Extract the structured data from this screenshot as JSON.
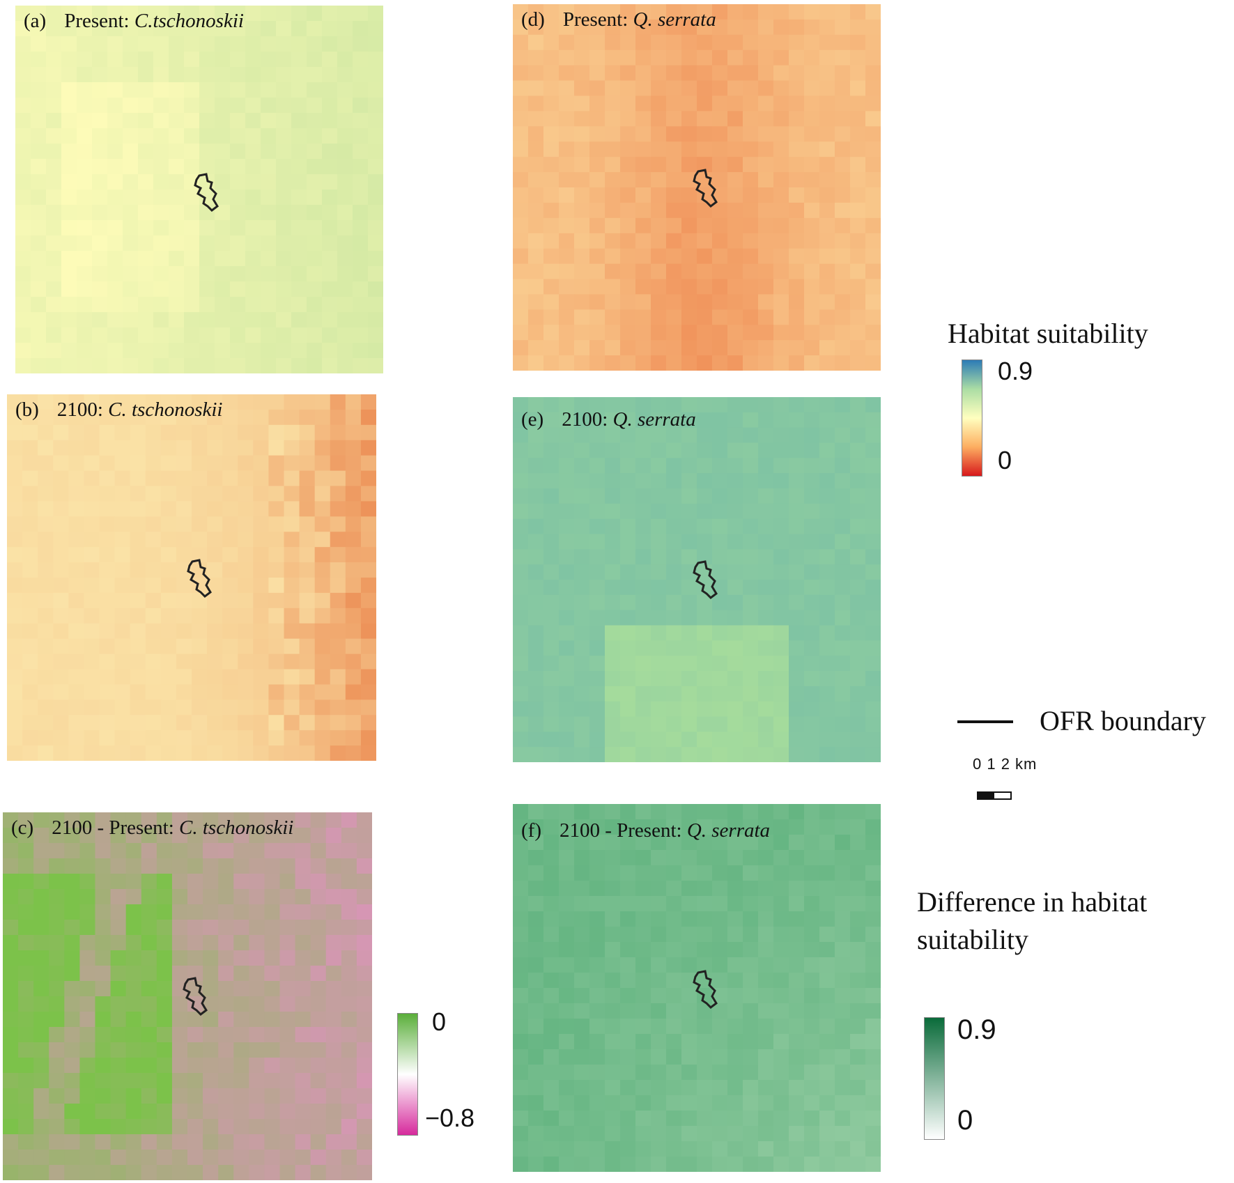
{
  "panels": [
    {
      "id": "a",
      "label": "(a)",
      "prefix": "Present: ",
      "species": "C.tschonoskii",
      "ramp": [
        "#fdfbb8",
        "#cfe7a2"
      ],
      "bias": "ca"
    },
    {
      "id": "b",
      "label": "(b)",
      "prefix": "2100: ",
      "species": "C. tschonoskii",
      "ramp": [
        "#fbe7ab",
        "#ed935a"
      ],
      "bias": "cb"
    },
    {
      "id": "c",
      "label": "(c)",
      "prefix": "2100 - Present: ",
      "species": "C. tschonoskii",
      "ramp": [
        "#7cc24a",
        "#e58fc6"
      ],
      "bias": "cc"
    },
    {
      "id": "d",
      "label": "(d)",
      "prefix": "Present: ",
      "species": "Q. serrata",
      "ramp": [
        "#fbd89a",
        "#ef8a53"
      ],
      "bias": "cd"
    },
    {
      "id": "e",
      "label": "(e)",
      "prefix": "2100: ",
      "species": "Q. serrata",
      "ramp": [
        "#7fc3a3",
        "#a6dc9c"
      ],
      "bias": "ce"
    },
    {
      "id": "f",
      "label": "(f)",
      "prefix": "2100 - Present: ",
      "species": "Q. serrata",
      "ramp": [
        "#5fb27e",
        "#a3d3ac"
      ],
      "bias": "cf"
    }
  ],
  "legend_habitat": {
    "title": "Habitat suitability",
    "max": "0.9",
    "min": "0",
    "colors": [
      "#2c7bb6",
      "#abdda4",
      "#ffffbf",
      "#fdae61",
      "#d7191c"
    ]
  },
  "legend_boundary": {
    "label": "OFR boundary"
  },
  "scale_bar": {
    "label": "0 1 2 km"
  },
  "legend_diff_c": {
    "max": "0",
    "min": "−0.8",
    "colors": [
      "#5aae3a",
      "#ffffff",
      "#d62a9c"
    ]
  },
  "legend_diff_f": {
    "title": "Difference in habitat suitability",
    "max": "0.9",
    "min": "0",
    "colors": [
      "#0a6b3a",
      "#ffffff"
    ]
  }
}
